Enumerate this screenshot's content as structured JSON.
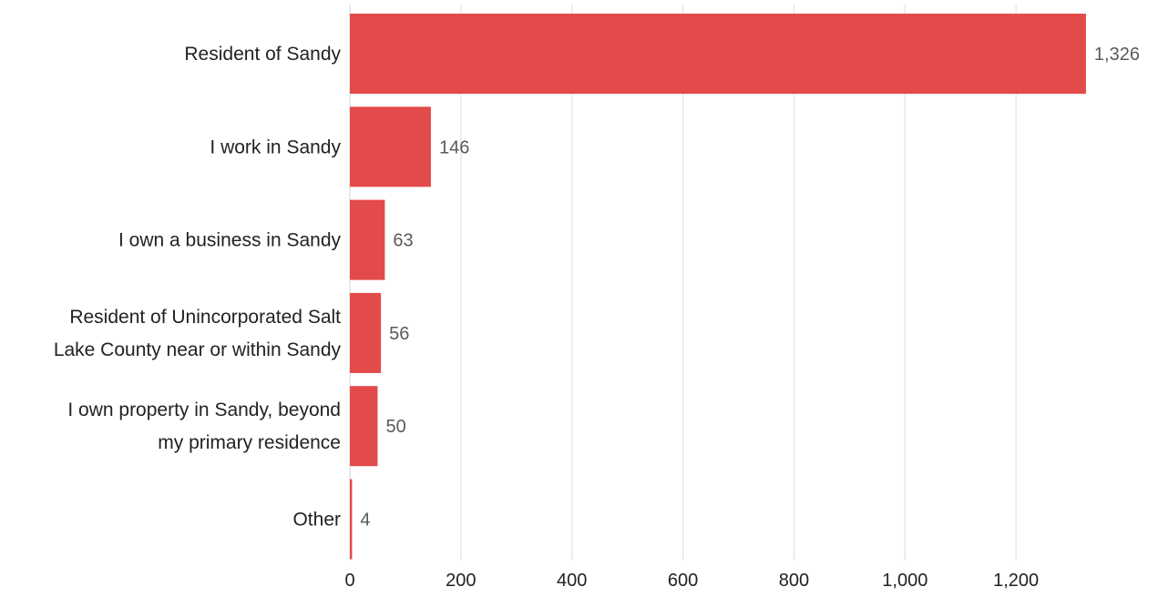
{
  "chart_data": {
    "type": "bar",
    "orientation": "horizontal",
    "categories": [
      "Resident of Sandy",
      "I work in Sandy",
      "I own a business in Sandy",
      "Resident of Unincorporated Salt Lake County near or within Sandy",
      "I own property in Sandy, beyond my primary residence",
      "Other"
    ],
    "category_label_lines": [
      [
        "Resident of Sandy"
      ],
      [
        "I work in Sandy"
      ],
      [
        "I own a business in Sandy"
      ],
      [
        "Resident of Unincorporated Salt",
        "Lake County near or within Sandy"
      ],
      [
        "I own property in Sandy, beyond",
        "my primary residence"
      ],
      [
        "Other"
      ]
    ],
    "values": [
      1326,
      146,
      63,
      56,
      50,
      4
    ],
    "value_labels": [
      "1,326",
      "146",
      "63",
      "56",
      "50",
      "4"
    ],
    "xlim": [
      0,
      1380
    ],
    "x_ticks": [
      0,
      200,
      400,
      600,
      800,
      1000,
      1200
    ],
    "x_tick_labels": [
      "0",
      "200",
      "400",
      "600",
      "800",
      "1,000",
      "1,200"
    ],
    "grid": "vertical",
    "colors": {
      "bar": "#e34a4a"
    }
  }
}
